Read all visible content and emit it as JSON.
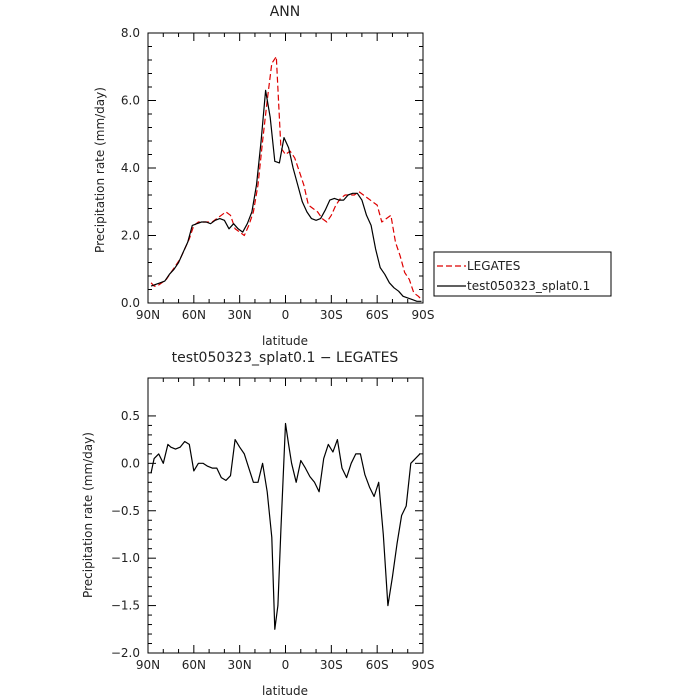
{
  "chart_data": [
    {
      "type": "line",
      "title": "ANN",
      "xlabel": "latitude",
      "ylabel": "Precipitation rate (mm/day)",
      "xlim": [
        90,
        -90
      ],
      "ylim": [
        0,
        8
      ],
      "x_ticks": [
        90,
        60,
        30,
        0,
        -30,
        -60,
        -90
      ],
      "x_tick_labels": [
        "90N",
        "60N",
        "30N",
        "0",
        "30S",
        "60S",
        "90S"
      ],
      "y_ticks": [
        0,
        2,
        4,
        6,
        8
      ],
      "y_tick_labels": [
        "0.0",
        "2.0",
        "4.0",
        "6.0",
        "8.0"
      ],
      "legend": "right",
      "series": [
        {
          "name": "LEGATES",
          "color": "#dd0000",
          "dash": "dashed",
          "x": [
            88,
            86,
            84,
            81,
            78,
            75,
            72,
            69,
            66,
            63,
            60,
            57,
            54,
            51,
            48,
            45,
            42,
            39,
            36,
            33,
            30,
            27,
            24,
            21,
            18,
            15,
            12,
            9,
            6,
            3,
            0,
            -3,
            -6,
            -9,
            -12,
            -15,
            -18,
            -21,
            -24,
            -27,
            -30,
            -33,
            -36,
            -39,
            -42,
            -45,
            -48,
            -51,
            -54,
            -57,
            -60,
            -63,
            -66,
            -69,
            -72,
            -75,
            -78,
            -81,
            -84,
            -87,
            -89
          ],
          "y": [
            0.6,
            0.5,
            0.5,
            0.6,
            0.7,
            0.9,
            1.1,
            1.3,
            1.6,
            1.9,
            2.3,
            2.4,
            2.4,
            2.4,
            2.4,
            2.5,
            2.6,
            2.7,
            2.6,
            2.2,
            2.1,
            2.0,
            2.3,
            2.7,
            3.5,
            4.8,
            6.0,
            7.1,
            7.3,
            4.6,
            4.4,
            4.5,
            4.3,
            3.9,
            3.5,
            2.9,
            2.8,
            2.7,
            2.5,
            2.4,
            2.6,
            2.9,
            3.1,
            3.2,
            3.2,
            3.2,
            3.3,
            3.2,
            3.1,
            3.0,
            2.9,
            2.4,
            2.5,
            2.6,
            1.8,
            1.4,
            0.9,
            0.7,
            0.3,
            0.2,
            0.1
          ]
        },
        {
          "name": "test050323_splat0.1",
          "color": "#000000",
          "dash": "solid",
          "x": [
            88,
            85,
            82,
            79,
            76,
            73,
            70,
            67,
            64,
            61,
            58,
            55,
            52,
            49,
            46,
            43,
            40,
            37,
            34,
            31,
            28,
            25,
            22,
            19,
            16,
            13,
            10,
            7,
            4,
            1,
            -2,
            -5,
            -8,
            -11,
            -14,
            -17,
            -20,
            -23,
            -26,
            -29,
            -32,
            -35,
            -38,
            -41,
            -44,
            -47,
            -50,
            -53,
            -56,
            -59,
            -62,
            -65,
            -68,
            -71,
            -74,
            -77,
            -80,
            -83,
            -86,
            -89
          ],
          "y": [
            0.5,
            0.55,
            0.6,
            0.65,
            0.85,
            1.0,
            1.2,
            1.5,
            1.8,
            2.3,
            2.35,
            2.4,
            2.4,
            2.35,
            2.45,
            2.5,
            2.45,
            2.2,
            2.35,
            2.2,
            2.1,
            2.35,
            2.7,
            3.5,
            4.8,
            6.3,
            5.5,
            4.2,
            4.15,
            4.9,
            4.6,
            4.0,
            3.5,
            3.0,
            2.7,
            2.5,
            2.45,
            2.5,
            2.75,
            3.05,
            3.1,
            3.05,
            3.05,
            3.2,
            3.25,
            3.25,
            3.05,
            2.6,
            2.3,
            1.6,
            1.05,
            0.85,
            0.6,
            0.45,
            0.35,
            0.2,
            0.15,
            0.1,
            0.05,
            0.05
          ]
        }
      ]
    },
    {
      "type": "line",
      "title": "test050323_splat0.1 − LEGATES",
      "xlabel": "latitude",
      "ylabel": "Precipitation rate (mm/day)",
      "xlim": [
        90,
        -90
      ],
      "ylim": [
        -2,
        0.9
      ],
      "x_ticks": [
        90,
        60,
        30,
        0,
        -30,
        -60,
        -90
      ],
      "x_tick_labels": [
        "90N",
        "60N",
        "30N",
        "0",
        "30S",
        "60S",
        "90S"
      ],
      "y_ticks": [
        0.5,
        0,
        -0.5,
        -1,
        -1.5,
        -2
      ],
      "y_tick_labels": [
        "0.5",
        "0.0",
        "−0.5",
        "−1.0",
        "−1.5",
        "−2.0"
      ],
      "series": [
        {
          "color": "#000000",
          "dash": "solid",
          "x": [
            88,
            86,
            83,
            80,
            77,
            75,
            72,
            69,
            66,
            63,
            60,
            57,
            54,
            51,
            48,
            45,
            42,
            39,
            36,
            33,
            30,
            27,
            24,
            21,
            18,
            15,
            12,
            9,
            7,
            5,
            3,
            0,
            -2,
            -4,
            -7,
            -10,
            -13,
            -16,
            -19,
            -22,
            -25,
            -28,
            -31,
            -34,
            -37,
            -40,
            -43,
            -46,
            -49,
            -52,
            -55,
            -58,
            -61,
            -64,
            -67,
            -70,
            -73,
            -76,
            -79,
            -82,
            -85,
            -88
          ],
          "y": [
            -0.1,
            0.05,
            0.1,
            0.0,
            0.2,
            0.17,
            0.15,
            0.17,
            0.23,
            0.2,
            -0.08,
            0.0,
            0.0,
            -0.03,
            -0.05,
            -0.05,
            -0.15,
            -0.18,
            -0.13,
            0.25,
            0.17,
            0.1,
            -0.05,
            -0.2,
            -0.2,
            0.0,
            -0.3,
            -0.78,
            -1.75,
            -1.5,
            -0.7,
            0.42,
            0.2,
            0.0,
            -0.2,
            0.03,
            -0.05,
            -0.14,
            -0.2,
            -0.3,
            0.05,
            0.2,
            0.12,
            0.25,
            -0.05,
            -0.15,
            0.0,
            0.1,
            0.1,
            -0.12,
            -0.25,
            -0.35,
            -0.2,
            -0.75,
            -1.5,
            -1.2,
            -0.85,
            -0.55,
            -0.45,
            0.0,
            0.05,
            0.1
          ]
        }
      ]
    }
  ]
}
